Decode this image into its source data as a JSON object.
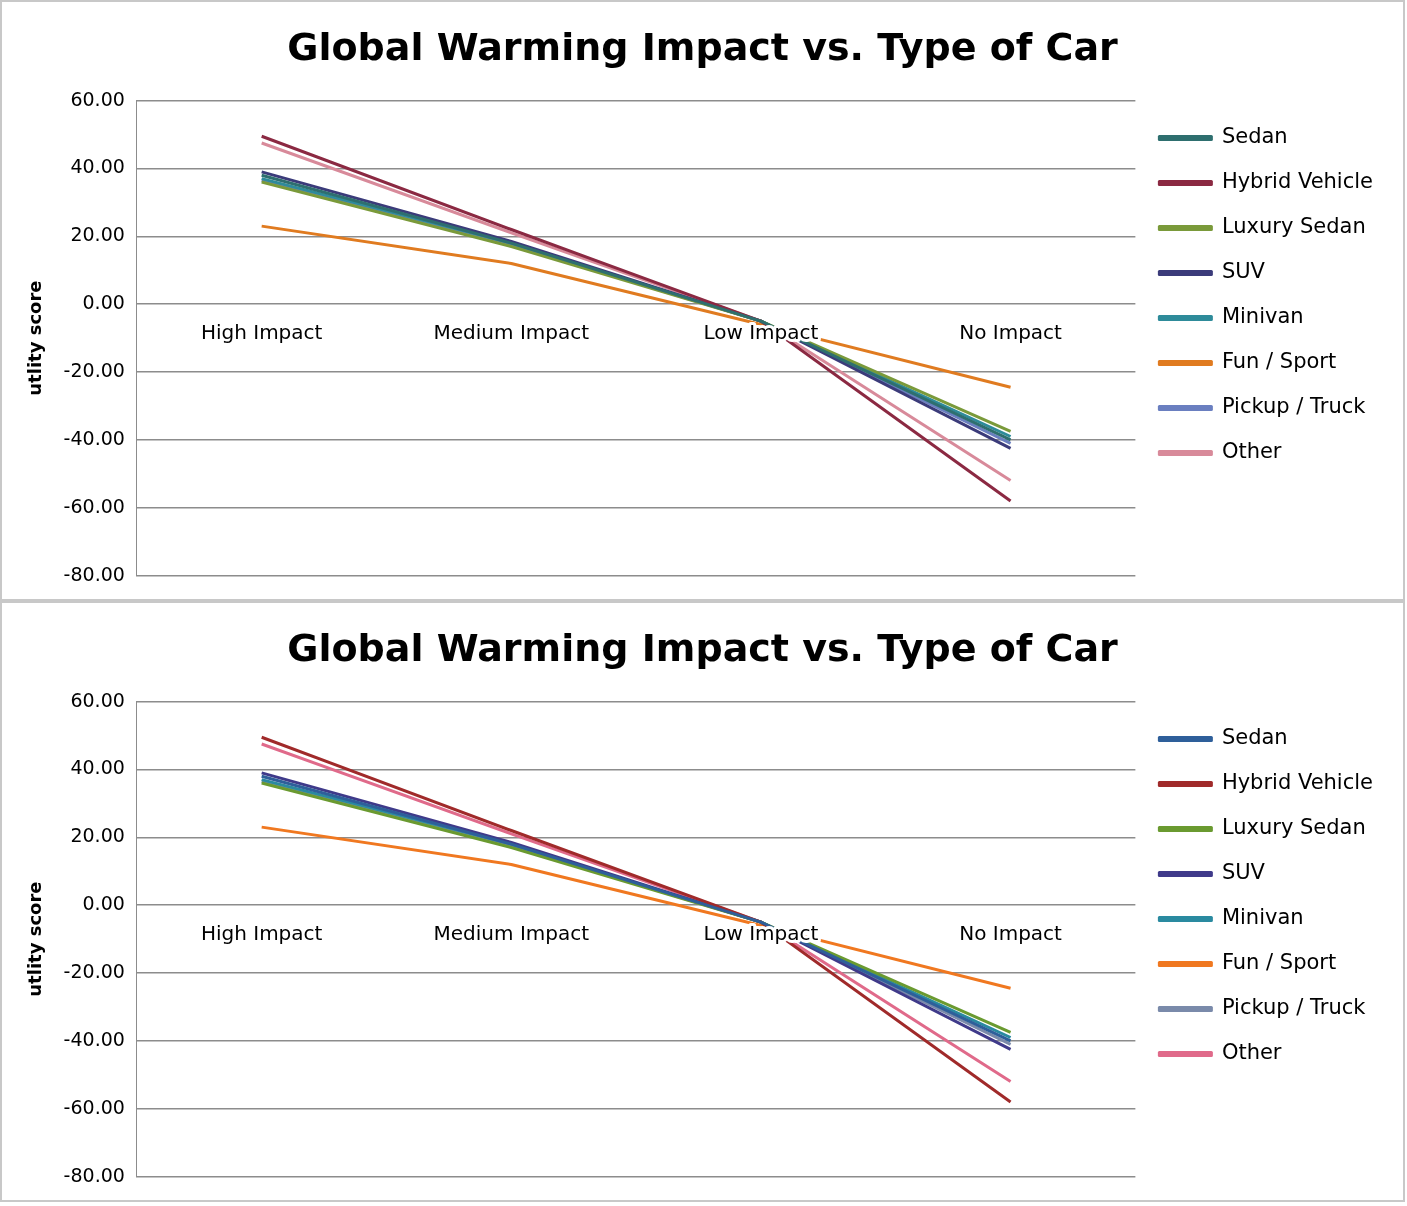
{
  "chart_data": [
    {
      "type": "line",
      "title": "Global Warming Impact vs. Type of Car",
      "ylabel": "utlity score",
      "categories": [
        "High Impact",
        "Medium Impact",
        "Low Impact",
        "No Impact"
      ],
      "ylim": [
        -80,
        60
      ],
      "yticks": [
        {
          "value": 60,
          "label": "60.00"
        },
        {
          "value": 40,
          "label": "40.00"
        },
        {
          "value": 20,
          "label": "20.00"
        },
        {
          "value": 0,
          "label": "0.00"
        },
        {
          "value": -20,
          "label": "-20.00"
        },
        {
          "value": -40,
          "label": "-40.00"
        },
        {
          "value": -60,
          "label": "-60.00"
        },
        {
          "value": -80,
          "label": "-80.00"
        }
      ],
      "grid": "y",
      "legend": "right",
      "marker": "none",
      "line_style": "solid",
      "series": [
        {
          "name": "Sedan",
          "color": "#2e6f6f",
          "values": [
            38,
            18,
            -5,
            -40
          ]
        },
        {
          "name": "Hybrid Vehicle",
          "color": "#8b2942",
          "values": [
            49.5,
            22,
            -5,
            -58
          ]
        },
        {
          "name": "Luxury Sedan",
          "color": "#7a9a3a",
          "values": [
            36,
            17,
            -5,
            -37.5
          ]
        },
        {
          "name": "SUV",
          "color": "#3b3b7a",
          "values": [
            39,
            18.5,
            -5,
            -42.5
          ]
        },
        {
          "name": "Minivan",
          "color": "#2e8b9a",
          "values": [
            37,
            18,
            -5,
            -39
          ]
        },
        {
          "name": "Fun / Sport",
          "color": "#e07b20",
          "values": [
            23,
            12,
            -6,
            -24.5
          ]
        },
        {
          "name": "Pickup / Truck",
          "color": "#6a7fc0",
          "values": [
            36.5,
            17.5,
            -5,
            -41
          ]
        },
        {
          "name": "Other",
          "color": "#d88a9a",
          "values": [
            47.5,
            21,
            -5,
            -52
          ]
        }
      ]
    },
    {
      "type": "line",
      "title": "Global Warming Impact vs. Type of Car",
      "ylabel": "utlity score",
      "categories": [
        "High Impact",
        "Medium Impact",
        "Low Impact",
        "No Impact"
      ],
      "ylim": [
        -80,
        60
      ],
      "yticks": [
        {
          "value": 60,
          "label": "60.00"
        },
        {
          "value": 40,
          "label": "40.00"
        },
        {
          "value": 20,
          "label": "20.00"
        },
        {
          "value": 0,
          "label": "0.00"
        },
        {
          "value": -20,
          "label": "-20.00"
        },
        {
          "value": -40,
          "label": "-40.00"
        },
        {
          "value": -60,
          "label": "-60.00"
        },
        {
          "value": -80,
          "label": "-80.00"
        }
      ],
      "grid": "y",
      "legend": "right",
      "marker": "none",
      "line_style": "solid",
      "series": [
        {
          "name": "Sedan",
          "color": "#2e5f9a",
          "values": [
            38,
            18,
            -5,
            -40
          ]
        },
        {
          "name": "Hybrid Vehicle",
          "color": "#a02a2a",
          "values": [
            49.5,
            22,
            -5,
            -58
          ]
        },
        {
          "name": "Luxury Sedan",
          "color": "#6a9a30",
          "values": [
            36,
            17,
            -5,
            -37.5
          ]
        },
        {
          "name": "SUV",
          "color": "#3f3a8a",
          "values": [
            39,
            18.5,
            -5,
            -42.5
          ]
        },
        {
          "name": "Minivan",
          "color": "#2a8aa0",
          "values": [
            37,
            18,
            -5,
            -39
          ]
        },
        {
          "name": "Fun / Sport",
          "color": "#f07820",
          "values": [
            23,
            12,
            -6,
            -24.5
          ]
        },
        {
          "name": "Pickup / Truck",
          "color": "#7a8aaa",
          "values": [
            36.5,
            17.5,
            -5,
            -41
          ]
        },
        {
          "name": "Other",
          "color": "#e06a8a",
          "values": [
            47.5,
            21,
            -5,
            -52
          ]
        }
      ]
    }
  ]
}
